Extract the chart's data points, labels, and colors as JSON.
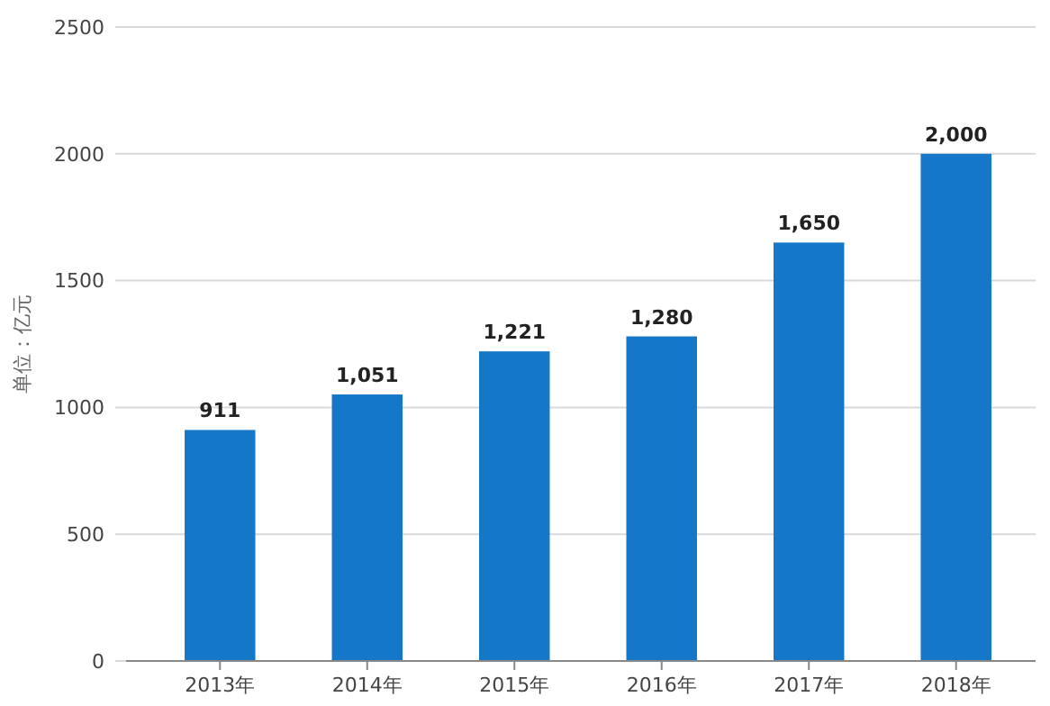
{
  "chart_data": {
    "type": "bar",
    "ylabel": "单位：亿元",
    "categories": [
      "2013年",
      "2014年",
      "2015年",
      "2016年",
      "2017年",
      "2018年"
    ],
    "values": [
      911,
      1051,
      1221,
      1280,
      1650,
      2000
    ],
    "value_labels": [
      "911",
      "1,051",
      "1,221",
      "1,280",
      "1,650",
      "2,000"
    ],
    "color": "#1577c8",
    "ylim": [
      0,
      2500
    ],
    "yticks": [
      0,
      500,
      1000,
      1500,
      2000,
      2500
    ],
    "grid": "y"
  }
}
